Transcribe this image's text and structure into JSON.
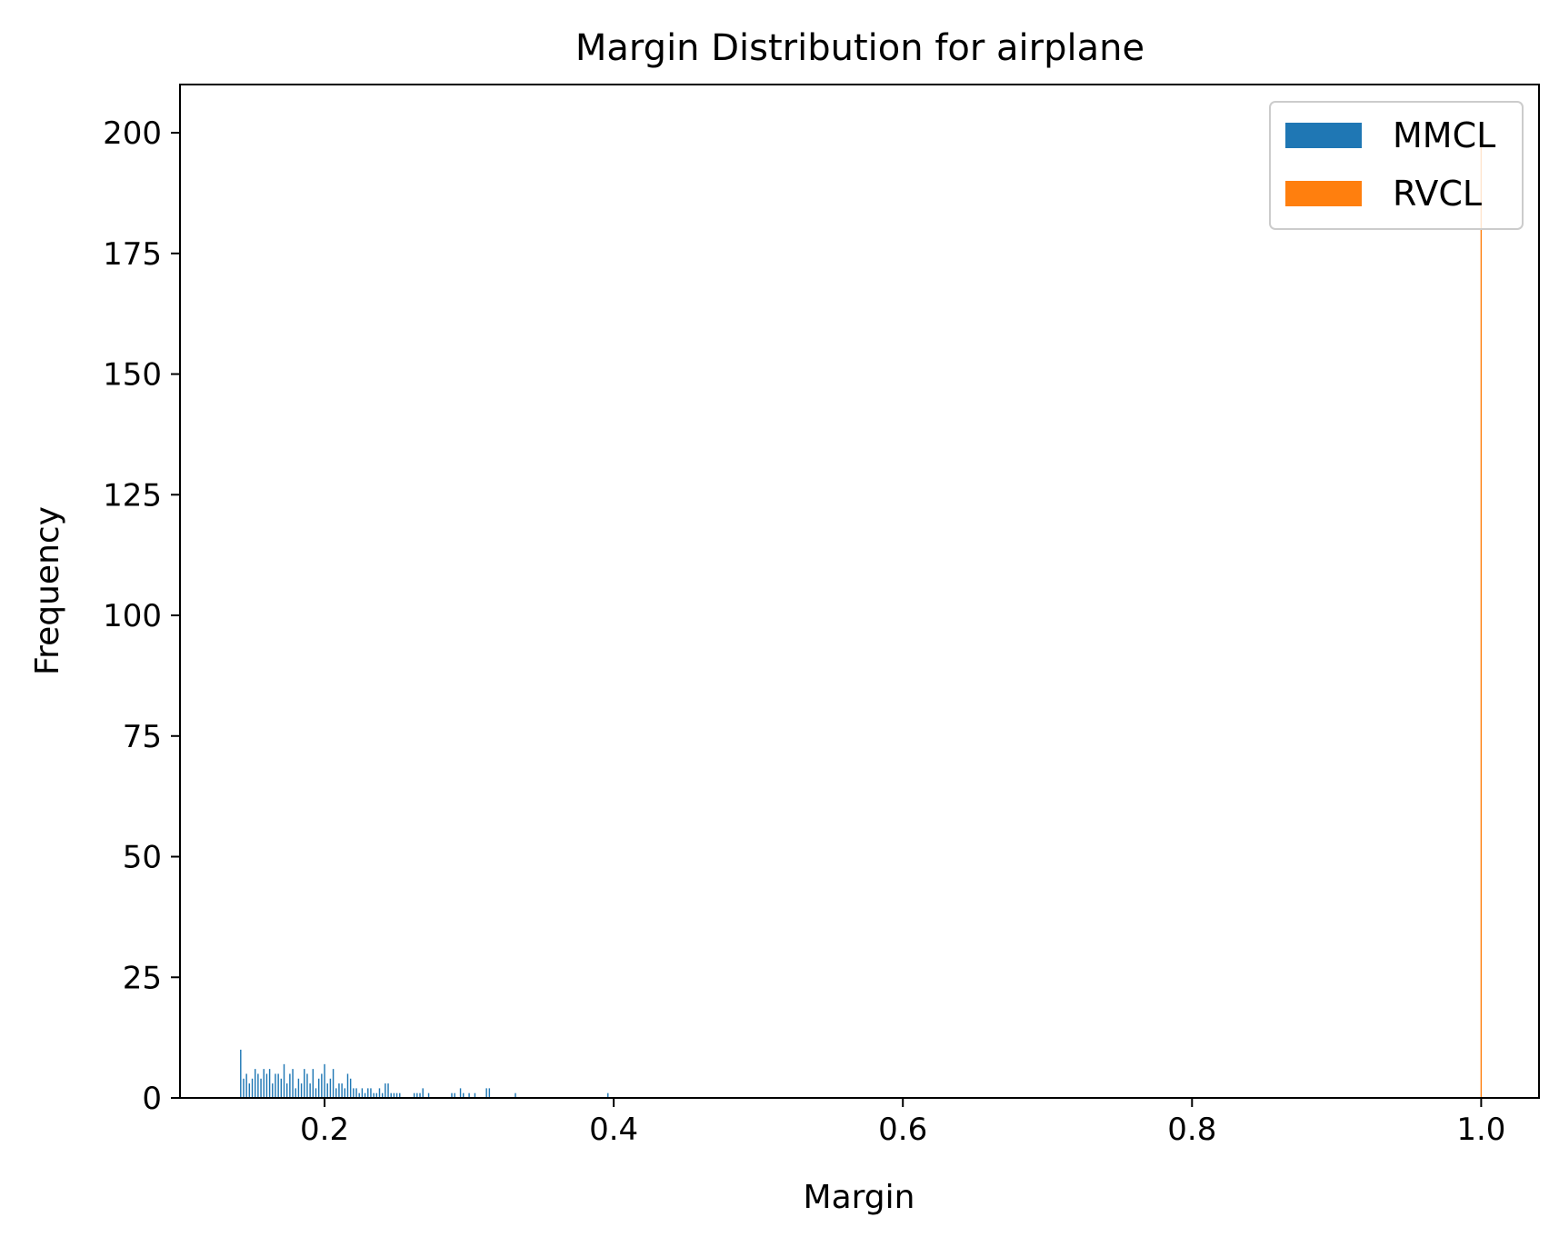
{
  "chart_data": {
    "type": "bar",
    "title": "Margin Distribution for airplane",
    "xlabel": "Margin",
    "ylabel": "Frequency",
    "xlim": [
      0.1,
      1.04
    ],
    "ylim": [
      0,
      210
    ],
    "x_ticks": [
      0.2,
      0.4,
      0.6,
      0.8,
      1.0
    ],
    "x_tick_labels": [
      "0.2",
      "0.4",
      "0.6",
      "0.8",
      "1.0"
    ],
    "y_ticks": [
      0,
      25,
      50,
      75,
      100,
      125,
      150,
      175,
      200
    ],
    "y_tick_labels": [
      "0",
      "25",
      "50",
      "75",
      "100",
      "125",
      "150",
      "175",
      "200"
    ],
    "grid": false,
    "legend_position": "top-right",
    "bin_width": 0.0009,
    "series": [
      {
        "name": "MMCL",
        "color": "#1f77b4",
        "x": [
          0.142,
          0.144,
          0.146,
          0.148,
          0.15,
          0.152,
          0.154,
          0.156,
          0.158,
          0.16,
          0.162,
          0.164,
          0.166,
          0.168,
          0.17,
          0.172,
          0.174,
          0.176,
          0.178,
          0.18,
          0.182,
          0.184,
          0.186,
          0.188,
          0.19,
          0.192,
          0.194,
          0.196,
          0.198,
          0.2,
          0.202,
          0.204,
          0.206,
          0.208,
          0.21,
          0.212,
          0.214,
          0.216,
          0.218,
          0.22,
          0.222,
          0.224,
          0.226,
          0.228,
          0.23,
          0.232,
          0.234,
          0.236,
          0.238,
          0.24,
          0.242,
          0.244,
          0.246,
          0.248,
          0.25,
          0.252,
          0.262,
          0.264,
          0.266,
          0.268,
          0.272,
          0.288,
          0.29,
          0.294,
          0.296,
          0.3,
          0.304,
          0.312,
          0.314,
          0.332,
          0.396
        ],
        "values": [
          10,
          4,
          5,
          3,
          4,
          6,
          5,
          4,
          6,
          5,
          6,
          3,
          5,
          5,
          4,
          7,
          3,
          5,
          6,
          2,
          4,
          3,
          6,
          5,
          3,
          6,
          2,
          4,
          5,
          7,
          3,
          4,
          6,
          2,
          3,
          3,
          2,
          5,
          4,
          2,
          2,
          1,
          2,
          1,
          2,
          2,
          1,
          1,
          2,
          1,
          3,
          3,
          1,
          1,
          1,
          1,
          1,
          1,
          1,
          2,
          1,
          1,
          1,
          2,
          1,
          1,
          1,
          2,
          2,
          1,
          1
        ]
      },
      {
        "name": "RVCL",
        "color": "#ff7f0e",
        "x": [
          1.0
        ],
        "values": [
          200
        ]
      }
    ]
  }
}
